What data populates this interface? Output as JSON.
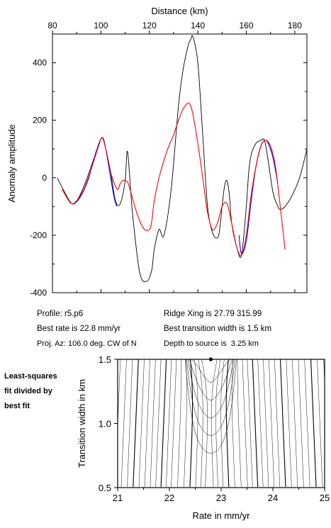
{
  "chart_data": [
    {
      "type": "line",
      "xlabel": "Distance (km)",
      "ylabel": "Anomaly amplitude",
      "xlim": [
        80,
        185
      ],
      "ylim": [
        -400,
        500
      ],
      "xticks": [
        80,
        100,
        120,
        140,
        160,
        180
      ],
      "yticks": [
        -400,
        -200,
        0,
        200,
        400
      ],
      "xaxis_position": "top",
      "grid": false,
      "series": [
        {
          "color": "#000000",
          "x": [
            82,
            85,
            88,
            90,
            93,
            96,
            99,
            100.5,
            102,
            104,
            106,
            108,
            110,
            111,
            113,
            116,
            119,
            121,
            122,
            124,
            126,
            129,
            132,
            134,
            136,
            137,
            138,
            140,
            142,
            144,
            146,
            148,
            149,
            150,
            151,
            152,
            153,
            154,
            156,
            158,
            160,
            161,
            162,
            164,
            166,
            167.5,
            169,
            171,
            173,
            174,
            176,
            179,
            182,
            185
          ],
          "y": [
            0,
            -50,
            -90,
            -80,
            -30,
            40,
            110,
            140,
            100,
            20,
            -80,
            -90,
            -10,
            90,
            -120,
            -330,
            -360,
            -320,
            -250,
            -180,
            -200,
            -40,
            250,
            380,
            460,
            480,
            490,
            400,
            150,
            -100,
            -190,
            -210,
            -180,
            -100,
            -30,
            -10,
            -60,
            -160,
            -240,
            -270,
            -100,
            20,
            80,
            120,
            130,
            130,
            60,
            -50,
            -100,
            -110,
            -100,
            -60,
            0,
            100
          ]
        },
        {
          "color": "#0000ff",
          "x": [
            87,
            89,
            92,
            95,
            98,
            100.5,
            102,
            104,
            105.5,
            106.5
          ],
          "y": [
            -85,
            -90,
            -60,
            0,
            90,
            140,
            100,
            0,
            -70,
            -100
          ]
        },
        {
          "color": "#0000ff",
          "x": [
            157,
            158,
            160,
            162,
            164,
            166,
            167.5,
            169,
            171,
            173
          ],
          "y": [
            -200,
            -265,
            -220,
            -80,
            40,
            110,
            130,
            120,
            70,
            -20
          ]
        },
        {
          "color": "#ff0000",
          "x": [
            84,
            86,
            88,
            90,
            93,
            96,
            99,
            100.5,
            102,
            104,
            106,
            107,
            108,
            109,
            110,
            111,
            112,
            114,
            116,
            118,
            120,
            121,
            122,
            124,
            126,
            128,
            130,
            132,
            134,
            136,
            137,
            138,
            140,
            142,
            144,
            146,
            148,
            150,
            152,
            154,
            156,
            158,
            160,
            162,
            164,
            166,
            168,
            170,
            172,
            174,
            176
          ],
          "y": [
            -40,
            -70,
            -90,
            -80,
            -40,
            30,
            110,
            140,
            100,
            20,
            -30,
            -40,
            -20,
            -10,
            -10,
            -15,
            -40,
            -100,
            -150,
            -180,
            -180,
            -150,
            -80,
            0,
            60,
            110,
            150,
            200,
            240,
            260,
            250,
            220,
            120,
            0,
            -120,
            -180,
            -160,
            -100,
            -90,
            -160,
            -240,
            -270,
            -200,
            -60,
            40,
            110,
            130,
            110,
            40,
            -100,
            -250
          ]
        }
      ],
      "profile_label": "Profile:",
      "profile_value": "r5.p6",
      "best_rate_label": "Best rate is",
      "best_rate_value": "22.8 mm/yr",
      "proj_label": "Proj. Az:",
      "proj_value": "106.0 deg. CW of N",
      "ridge_label": "Ridge Xing is",
      "ridge_value": "27.79 315.99",
      "width_label": "Best transition width is",
      "width_value": "1.5 km",
      "depth_label": "Depth to source is",
      "depth_value": "3.25 km"
    },
    {
      "type": "contour",
      "xlabel": "Rate in mm/yr",
      "ylabel": "Transition width in km",
      "xlim": [
        21,
        25
      ],
      "ylim": [
        0.5,
        1.5
      ],
      "xticks": [
        21,
        22,
        23,
        24,
        25
      ],
      "yticks": [
        0.5,
        1.0,
        1.5
      ],
      "best_fit_point": {
        "x": 22.8,
        "y": 1.5
      },
      "side_label_lines": [
        "Least-squares",
        "fit divided by",
        "best fit"
      ]
    }
  ]
}
